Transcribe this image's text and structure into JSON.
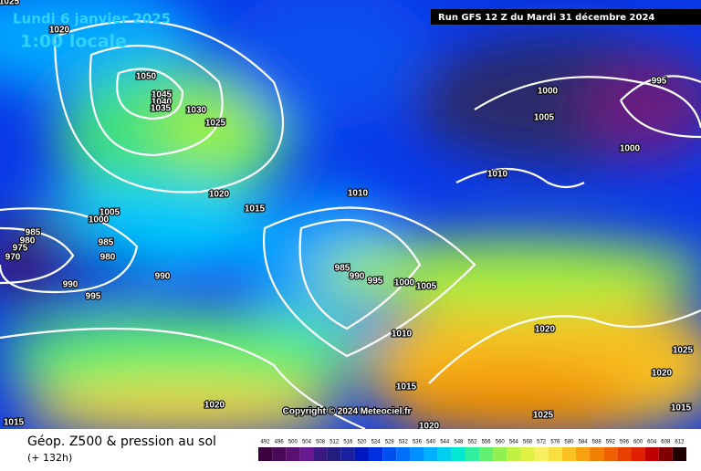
{
  "header": {
    "date": "Lundi 6 janvier 2025",
    "time": "1:00 locale",
    "run": "Run GFS 12 Z du Mardi 31 décembre 2024"
  },
  "isobar_labels": [
    "1025",
    "1020",
    "1050",
    "1045",
    "1040",
    "1035",
    "1030",
    "1025",
    "1020",
    "1015",
    "1010",
    "1005",
    "1000",
    "985",
    "980",
    "975",
    "970",
    "985",
    "980",
    "990",
    "990",
    "995",
    "985",
    "990",
    "995",
    "1000",
    "1005",
    "1010",
    "1015",
    "1020",
    "1015",
    "1020",
    "1025",
    "1020",
    "1025",
    "1020",
    "1015",
    "1000",
    "1005",
    "995",
    "1000",
    "1010"
  ],
  "copyright": "Copyright © 2024 Meteociel.fr",
  "footer": {
    "title": "Géop. Z500 & pression au sol",
    "subtitle": "(+ 132h)"
  },
  "legend": [
    {
      "value": 492,
      "color": "#3a0040"
    },
    {
      "value": 496,
      "color": "#4a0a5a"
    },
    {
      "value": 500,
      "color": "#5a1070"
    },
    {
      "value": 504,
      "color": "#6a1a90"
    },
    {
      "value": 508,
      "color": "#3a1a80"
    },
    {
      "value": 512,
      "color": "#201e80"
    },
    {
      "value": 516,
      "color": "#1a20a0"
    },
    {
      "value": 520,
      "color": "#0018c0"
    },
    {
      "value": 524,
      "color": "#0030e0"
    },
    {
      "value": 528,
      "color": "#0050f0"
    },
    {
      "value": 532,
      "color": "#0070f8"
    },
    {
      "value": 536,
      "color": "#0090ff"
    },
    {
      "value": 540,
      "color": "#00b0ff"
    },
    {
      "value": 544,
      "color": "#00d0f0"
    },
    {
      "value": 548,
      "color": "#00e8d0"
    },
    {
      "value": 552,
      "color": "#30f0a0"
    },
    {
      "value": 556,
      "color": "#60f070"
    },
    {
      "value": 560,
      "color": "#90f050"
    },
    {
      "value": 564,
      "color": "#c0f040"
    },
    {
      "value": 568,
      "color": "#e0f040"
    },
    {
      "value": 572,
      "color": "#f8f060"
    },
    {
      "value": 576,
      "color": "#f8e040"
    },
    {
      "value": 580,
      "color": "#f8c020"
    },
    {
      "value": 584,
      "color": "#f8a010"
    },
    {
      "value": 588,
      "color": "#f08000"
    },
    {
      "value": 592,
      "color": "#f06000"
    },
    {
      "value": 596,
      "color": "#e84000"
    },
    {
      "value": 600,
      "color": "#e02000"
    },
    {
      "value": 604,
      "color": "#c00000"
    },
    {
      "value": 608,
      "color": "#800000"
    },
    {
      "value": 612,
      "color": "#200000"
    }
  ]
}
